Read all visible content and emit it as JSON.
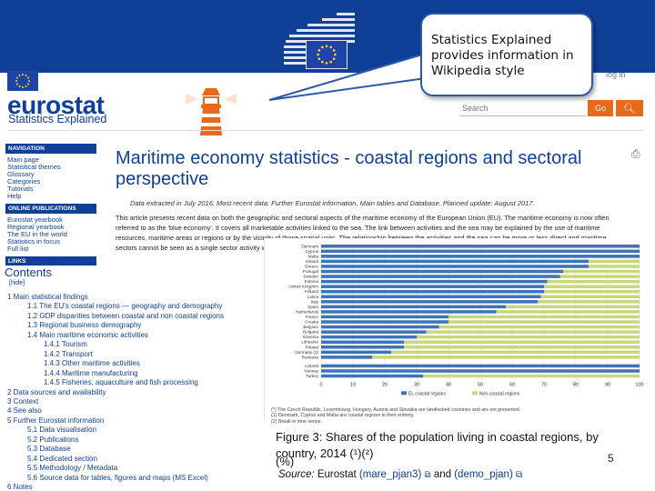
{
  "callout": {
    "text": "Statistics Explained provides information in Wikipedia style"
  },
  "header": {
    "logo": "eurostat",
    "tagline": "Statistics Explained",
    "login": "log in",
    "search_placeholder": "Search",
    "go_label": "Go",
    "search_icon": "magnifier-icon"
  },
  "nav": {
    "navigation_title": "NAVIGATION",
    "navigation_items": [
      "Main page",
      "Statistical themes",
      "Glossary",
      "Categories",
      "Tutorials",
      "Help"
    ],
    "online_title": "ONLINE PUBLICATIONS",
    "online_items": [
      "Eurostat yearbook",
      "Regional yearbook",
      "The EU in the world",
      "Statistics in focus",
      "Full list"
    ],
    "links_title": "LINKS"
  },
  "article": {
    "title": "Maritime economy statistics - coastal regions and sectoral perspective",
    "meta": "Data extracted in July 2016. Most recent data: Further Eurostat information, Main tables and Database. Planned update: August 2017.",
    "intro": "This article presents recent data on both the geographic and sectoral aspects of the maritime economy of the European Union (EU). The maritime economy is now often referred to as the 'blue economy'. It covers all marketable activities linked to the sea. The link between activities and the sea may be explained by the use of maritime resources, maritime areas or regions or by the vicinity of those spatial units. The relationship between the activities and the sea can be more or less direct and maritime sectors cannot be seen as a single sector activity within the NACE classification but rather as a set of activities."
  },
  "contents": {
    "title": "Contents",
    "hide": "[hide]",
    "items": [
      "1 Main statistical findings",
      "1.1 The EU's coastal regions — geography and demography",
      "1.2 GDP disparities between coastal and non coastal regions",
      "1.3 Regional business demography",
      "1.4 Main maritime economic activities",
      "1.4.1 Tourism",
      "1.4.2 Transport",
      "1.4.3 Other maritime activities",
      "1.4.4 Maritime manufacturing",
      "1.4.5 Fisheries, aquaculture and fish processing",
      "2 Data sources and availability",
      "3 Context",
      "4 See also",
      "5 Further Eurostat information",
      "5.1 Data visualisation",
      "5.2 Publications",
      "5.3 Database",
      "5.4 Dedicated section",
      "5.5 Methodology / Metadata",
      "5.6 Source data for tables, figures and maps (MS Excel)",
      "6 Notes"
    ]
  },
  "chart_data": {
    "type": "bar",
    "orientation": "horizontal",
    "stacked": true,
    "categories": [
      "Denmark",
      "Cyprus",
      "Malta",
      "Ireland",
      "Greece",
      "Portugal",
      "Sweden",
      "Estonia",
      "United Kingdom",
      "Finland",
      "Latvia",
      "Italy",
      "Spain",
      "Netherlands",
      "France",
      "Croatia",
      "Belgium",
      "Bulgaria",
      "Slovenia",
      "Lithuania",
      "Poland",
      "Germany (1)",
      "Romania",
      "Iceland",
      "Norway",
      "Turkey"
    ],
    "series": [
      {
        "name": "EL coastal regions",
        "color": "#3f73b8",
        "values": [
          100,
          100,
          100,
          84,
          84,
          76,
          75,
          71,
          70,
          70,
          69,
          68,
          58,
          55,
          40,
          40,
          37,
          33,
          30,
          26,
          26,
          22,
          16,
          100,
          100,
          32
        ]
      },
      {
        "name": "Non-coastal regions",
        "color": "#c8d77e",
        "values": [
          0,
          0,
          0,
          16,
          16,
          24,
          25,
          29,
          30,
          30,
          31,
          32,
          42,
          45,
          60,
          60,
          63,
          67,
          70,
          74,
          74,
          78,
          84,
          0,
          0,
          68
        ]
      }
    ],
    "x_ticks": [
      "0",
      "10",
      "20",
      "30",
      "40",
      "50",
      "60",
      "70",
      "80",
      "90",
      "100"
    ],
    "xlim": [
      0,
      100
    ],
    "legend": "bottom",
    "notes": [
      "(*) The Czech Republic, Luxembourg, Hungary, Austria and Slovakia are landlocked countries and are not presented.",
      "(1) Denmark, Cyprus and Malta are coastal regions in their entirety.",
      "(2) Break in time series."
    ]
  },
  "figure": {
    "caption": "Figure 3: Shares of the population living in coastal regions, by country, 2014 (¹)(²)",
    "unit": "(%)",
    "source_label": "Source:",
    "source_publisher": "Eurostat",
    "source_link1": "(mare_pjan3)",
    "source_and": "and",
    "source_link2": "(demo_pjan)"
  },
  "slide_number": "5"
}
